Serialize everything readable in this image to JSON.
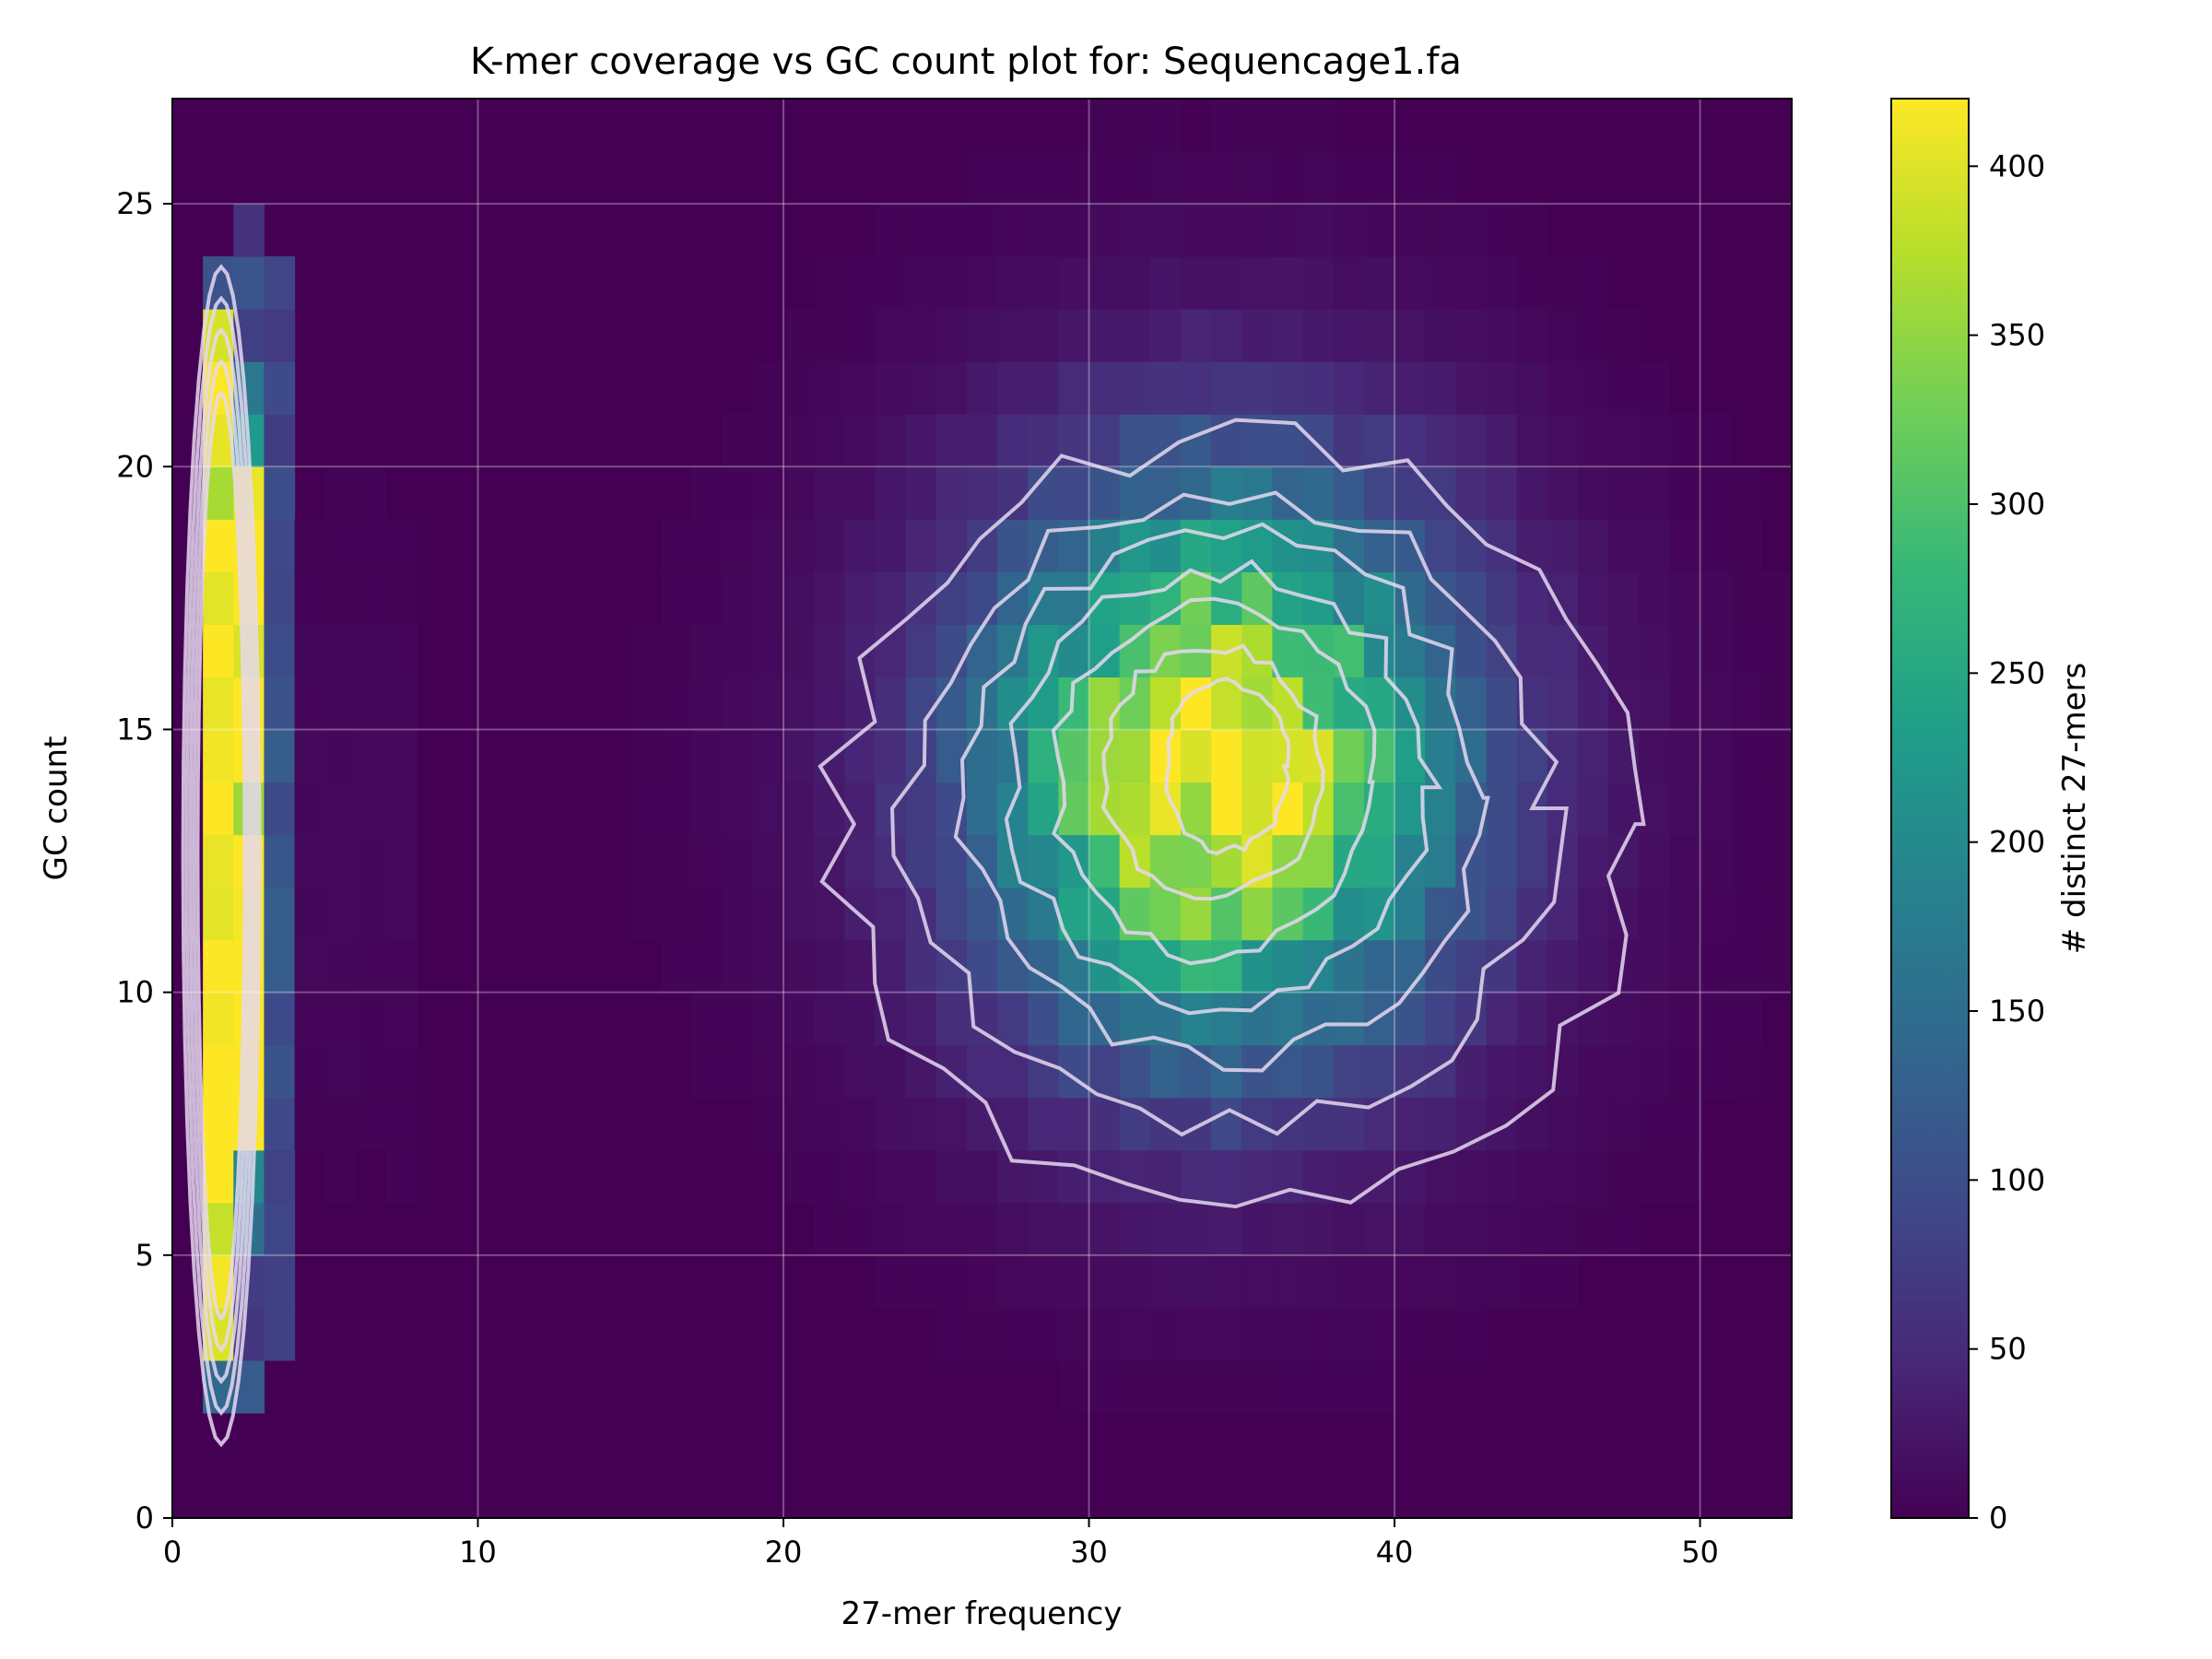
{
  "chart_data": {
    "type": "heatmap",
    "title": "K-mer coverage vs GC count plot for: Sequencage1.fa",
    "xlabel": "27-mer frequency",
    "ylabel": "GC count",
    "colorbar_label": "# distinct 27-mers",
    "xlim": [
      0,
      53
    ],
    "ylim": [
      0,
      27
    ],
    "x_ticks": [
      0,
      10,
      20,
      30,
      40,
      50
    ],
    "y_ticks": [
      0,
      5,
      10,
      15,
      20,
      25
    ],
    "colorbar_range": [
      0,
      420
    ],
    "colorbar_ticks": [
      0,
      50,
      100,
      150,
      200,
      250,
      300,
      350,
      400
    ],
    "colormap": "viridis",
    "grid": true,
    "bin_width": 1,
    "bin_height": 1,
    "low_coverage_peak": {
      "x_bins": [
        1,
        2,
        3
      ],
      "y_range": [
        2,
        24
      ],
      "max_value": 420
    },
    "main_peak": {
      "center_x": 34.5,
      "center_y": 14.5,
      "max_value": 420,
      "x_range": [
        21,
        53
      ],
      "y_range": [
        4,
        24
      ]
    },
    "contour_color": "#e6d8f0"
  }
}
